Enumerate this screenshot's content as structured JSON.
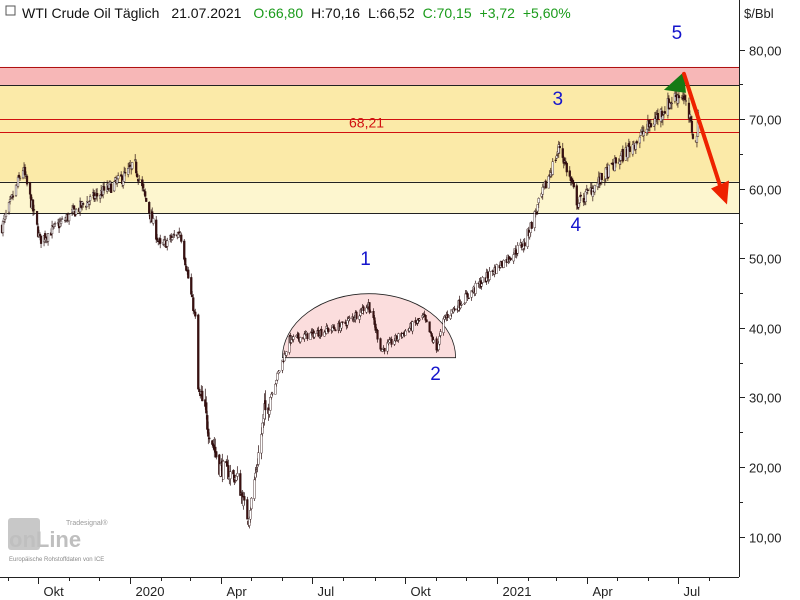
{
  "header": {
    "title": "WTI Crude Oil Täglich",
    "date": "21.07.2021",
    "open": "O:66,80",
    "high": "H:70,16",
    "low": "L:66,52",
    "close": "C:70,15",
    "change": "+3,72",
    "change_pct": "+5,60%"
  },
  "logo": {
    "wordmark": "onLine",
    "brand": "Tradesignal®",
    "source_note": "Europäische Rohstoffdaten von ICE"
  },
  "colors": {
    "up": "#1a9b1a",
    "candle_dark": "#3a1010",
    "zone_red": "#f7b7b7",
    "zone_yellow": "#fbeaa8",
    "zone_light": "#fdf6cf",
    "level_line": "#d01010",
    "wave_label": "#1515cc",
    "arrow": "#ee2200"
  },
  "chart_data": {
    "type": "candlestick",
    "title": "WTI Crude Oil Täglich",
    "unit": "$/Bbl",
    "ylim": [
      7,
      84
    ],
    "yticks": [
      "80,00",
      "70,00",
      "60,00",
      "50,00",
      "40,00",
      "30,00",
      "20,00",
      "10,00"
    ],
    "x_labels": [
      "Okt",
      "2020",
      "Apr",
      "Jul",
      "Okt",
      "2021",
      "Apr",
      "Jul"
    ],
    "grid": false,
    "price_path": [
      {
        "x": "2019-08-26",
        "y": 54.5
      },
      {
        "x": "2019-09-16",
        "y": 62.9
      },
      {
        "x": "2019-10-03",
        "y": 52.6
      },
      {
        "x": "2019-11-15",
        "y": 57.7
      },
      {
        "x": "2019-12-20",
        "y": 61.0
      },
      {
        "x": "2020-01-06",
        "y": 63.3
      },
      {
        "x": "2020-01-31",
        "y": 51.6
      },
      {
        "x": "2020-02-20",
        "y": 53.8
      },
      {
        "x": "2020-03-06",
        "y": 41.3
      },
      {
        "x": "2020-03-09",
        "y": 31.1
      },
      {
        "x": "2020-03-30",
        "y": 20.1
      },
      {
        "x": "2020-04-17",
        "y": 18.3
      },
      {
        "x": "2020-04-28",
        "y": 12.3
      },
      {
        "x": "2020-05-14",
        "y": 27.6
      },
      {
        "x": "2020-06-08",
        "y": 38.2
      },
      {
        "x": "2020-07-31",
        "y": 40.3
      },
      {
        "x": "2020-08-26",
        "y": 43.4
      },
      {
        "x": "2020-09-08",
        "y": 36.8
      },
      {
        "x": "2020-10-20",
        "y": 41.5
      },
      {
        "x": "2020-11-02",
        "y": 36.8
      },
      {
        "x": "2020-11-10",
        "y": 41.4
      },
      {
        "x": "2020-12-31",
        "y": 48.5
      },
      {
        "x": "2021-01-29",
        "y": 52.2
      },
      {
        "x": "2021-03-05",
        "y": 66.1
      },
      {
        "x": "2021-03-23",
        "y": 57.8
      },
      {
        "x": "2021-04-30",
        "y": 63.6
      },
      {
        "x": "2021-06-30",
        "y": 73.5
      },
      {
        "x": "2021-07-06",
        "y": 73.4
      },
      {
        "x": "2021-07-19",
        "y": 66.4
      },
      {
        "x": "2021-07-21",
        "y": 70.15
      }
    ],
    "resistance_zones": [
      {
        "name": "upper-red",
        "from": 74.9,
        "to": 77.5,
        "color": "#f7b7b7"
      },
      {
        "name": "upper-yellow",
        "from": 61.0,
        "to": 74.9,
        "color": "#fbeaa8"
      },
      {
        "name": "lower-light",
        "from": 56.5,
        "to": 61.0,
        "color": "#fdf6cf"
      }
    ],
    "horizontal_lines": [
      {
        "value": 77.5,
        "color": "#b01010"
      },
      {
        "value": 74.9,
        "color": "#222222"
      },
      {
        "value": 70.0,
        "color": "#d01010"
      },
      {
        "value": 68.21,
        "color": "#d01010"
      },
      {
        "value": 61.0,
        "color": "#222222"
      },
      {
        "value": 56.5,
        "color": "#222222"
      }
    ],
    "level_label": "68,21",
    "wave_labels": [
      {
        "label": "1",
        "x": "2020-08-23",
        "y": 49.0
      },
      {
        "label": "2",
        "x": "2020-11-01",
        "y": 32.5
      },
      {
        "label": "3",
        "x": "2021-03-03",
        "y": 72.0
      },
      {
        "label": "4",
        "x": "2021-03-21",
        "y": 53.9
      },
      {
        "label": "5",
        "x": "2021-06-30",
        "y": 81.5
      }
    ],
    "rounding_bottom": {
      "from": "2020-06-01",
      "to": "2020-11-21",
      "top": 44.9,
      "bottom": 35.7
    },
    "projection_arrow": {
      "from": {
        "x": "2021-07-07",
        "y": 76.5
      },
      "to": {
        "x": "2021-08-17",
        "y": 58.0
      }
    }
  }
}
